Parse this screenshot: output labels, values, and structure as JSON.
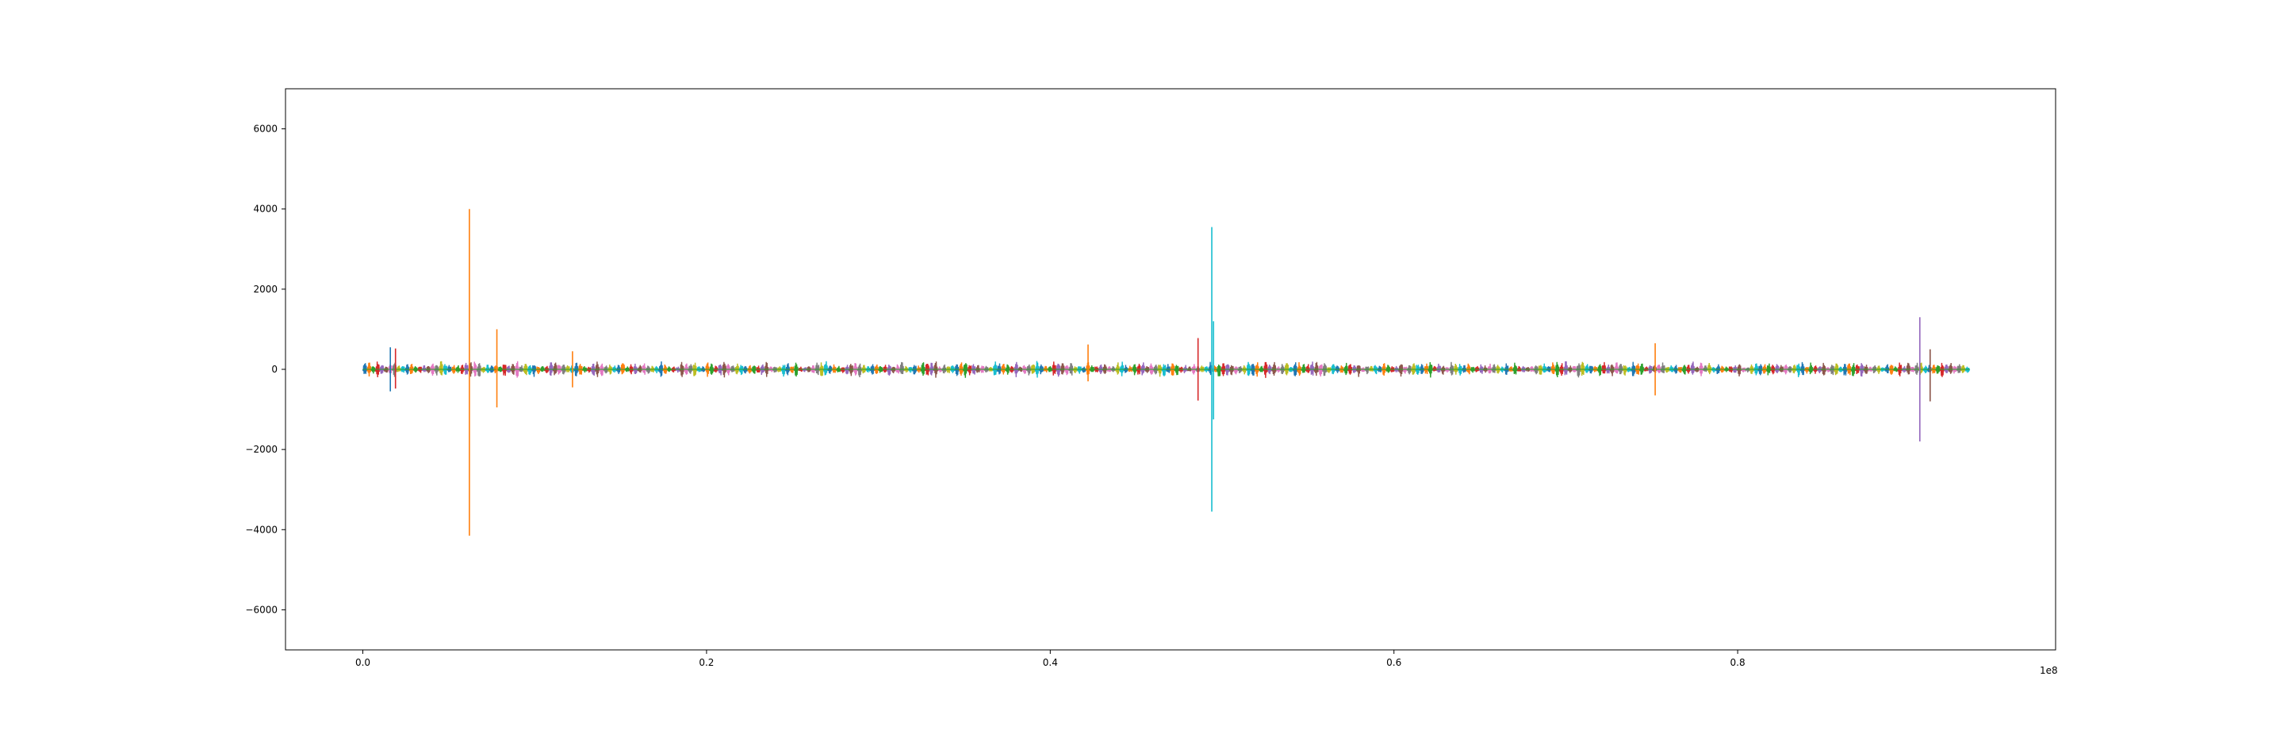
{
  "chart_data": {
    "type": "line",
    "title": "",
    "xlabel": "",
    "ylabel": "",
    "xlim": [
      -0.045,
      0.985
    ],
    "ylim": [
      -7000,
      7000
    ],
    "x_offset_label": "1e8",
    "x_ticks": [
      0.0,
      0.2,
      0.4,
      0.6,
      0.8
    ],
    "x_tick_labels": [
      "0.0",
      "0.2",
      "0.4",
      "0.6",
      "0.8"
    ],
    "y_ticks": [
      6000,
      4000,
      2000,
      0,
      -2000,
      -4000,
      -6000
    ],
    "y_tick_labels": [
      "6000",
      "4000",
      "2000",
      "0",
      "−2000",
      "−4000",
      "−6000"
    ],
    "grid": false,
    "legend": "none",
    "colors": [
      "#1f77b4",
      "#ff7f0e",
      "#2ca02c",
      "#d62728",
      "#9467bd",
      "#8c564b",
      "#e377c2",
      "#7f7f7f",
      "#bcbd22",
      "#17becf"
    ],
    "x_range": [
      0.0,
      0.935
    ],
    "baseline_amplitude": 150,
    "spikes": [
      {
        "x": 0.016,
        "max": 550,
        "min": -550,
        "color": "#1f77b4"
      },
      {
        "x": 0.019,
        "max": 520,
        "min": -480,
        "color": "#d62728"
      },
      {
        "x": 0.062,
        "max": 4000,
        "min": -4150,
        "color": "#ff7f0e"
      },
      {
        "x": 0.078,
        "max": 1000,
        "min": -950,
        "color": "#ff7f0e"
      },
      {
        "x": 0.122,
        "max": 450,
        "min": -450,
        "color": "#ff7f0e"
      },
      {
        "x": 0.422,
        "max": 620,
        "min": -300,
        "color": "#ff7f0e"
      },
      {
        "x": 0.486,
        "max": 780,
        "min": -780,
        "color": "#d62728"
      },
      {
        "x": 0.494,
        "max": 3550,
        "min": -3550,
        "color": "#17becf"
      },
      {
        "x": 0.495,
        "max": 1200,
        "min": -1250,
        "color": "#17becf"
      },
      {
        "x": 0.752,
        "max": 650,
        "min": -650,
        "color": "#ff7f0e"
      },
      {
        "x": 0.906,
        "max": 1300,
        "min": -1800,
        "color": "#9467bd"
      },
      {
        "x": 0.912,
        "max": 500,
        "min": -800,
        "color": "#8c564b"
      }
    ]
  }
}
